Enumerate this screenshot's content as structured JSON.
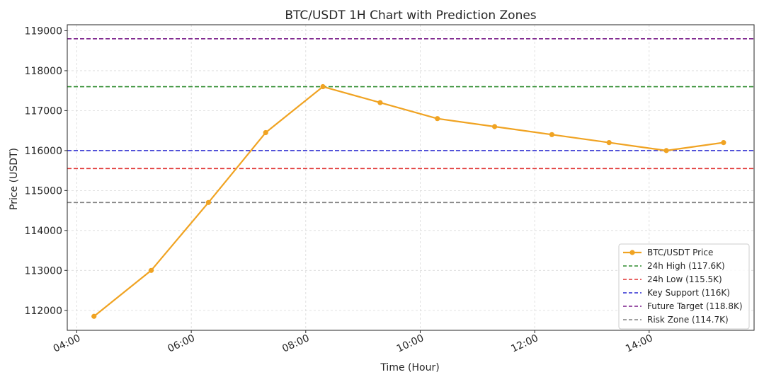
{
  "chart_data": {
    "type": "line",
    "title": "BTC/USDT 1H Chart with Prediction Zones",
    "xlabel": "Time (Hour)",
    "ylabel": "Price (USDT)",
    "x_ticks": [
      "04:00",
      "06:00",
      "08:00",
      "10:00",
      "12:00",
      "14:00"
    ],
    "y_ticks": [
      112000,
      113000,
      114000,
      115000,
      116000,
      117000,
      118000,
      119000
    ],
    "xlim": [
      "03:50",
      "15:50"
    ],
    "ylim": [
      111500,
      119150
    ],
    "grid": true,
    "legend_position": "bottom-right",
    "series": [
      {
        "name": "BTC/USDT Price",
        "color": "#f0a322",
        "marker": "circle",
        "x": [
          "04:18",
          "05:18",
          "06:18",
          "07:18",
          "08:18",
          "09:18",
          "10:18",
          "11:18",
          "12:18",
          "13:18",
          "14:18",
          "15:18"
        ],
        "values": [
          111850,
          113000,
          114700,
          116450,
          117600,
          117200,
          116800,
          116600,
          116400,
          116200,
          116000,
          116200
        ]
      }
    ],
    "reference_lines": [
      {
        "name": "24h High (117.6K)",
        "value": 117600,
        "color": "#2e8b2e"
      },
      {
        "name": "24h Low (115.5K)",
        "value": 115550,
        "color": "#e03030"
      },
      {
        "name": "Key Support (116K)",
        "value": 116000,
        "color": "#2a2ad0"
      },
      {
        "name": "Future Target (118.8K)",
        "value": 118800,
        "color": "#7a1f8a"
      },
      {
        "name": "Risk Zone (114.7K)",
        "value": 114700,
        "color": "#808080"
      }
    ]
  }
}
